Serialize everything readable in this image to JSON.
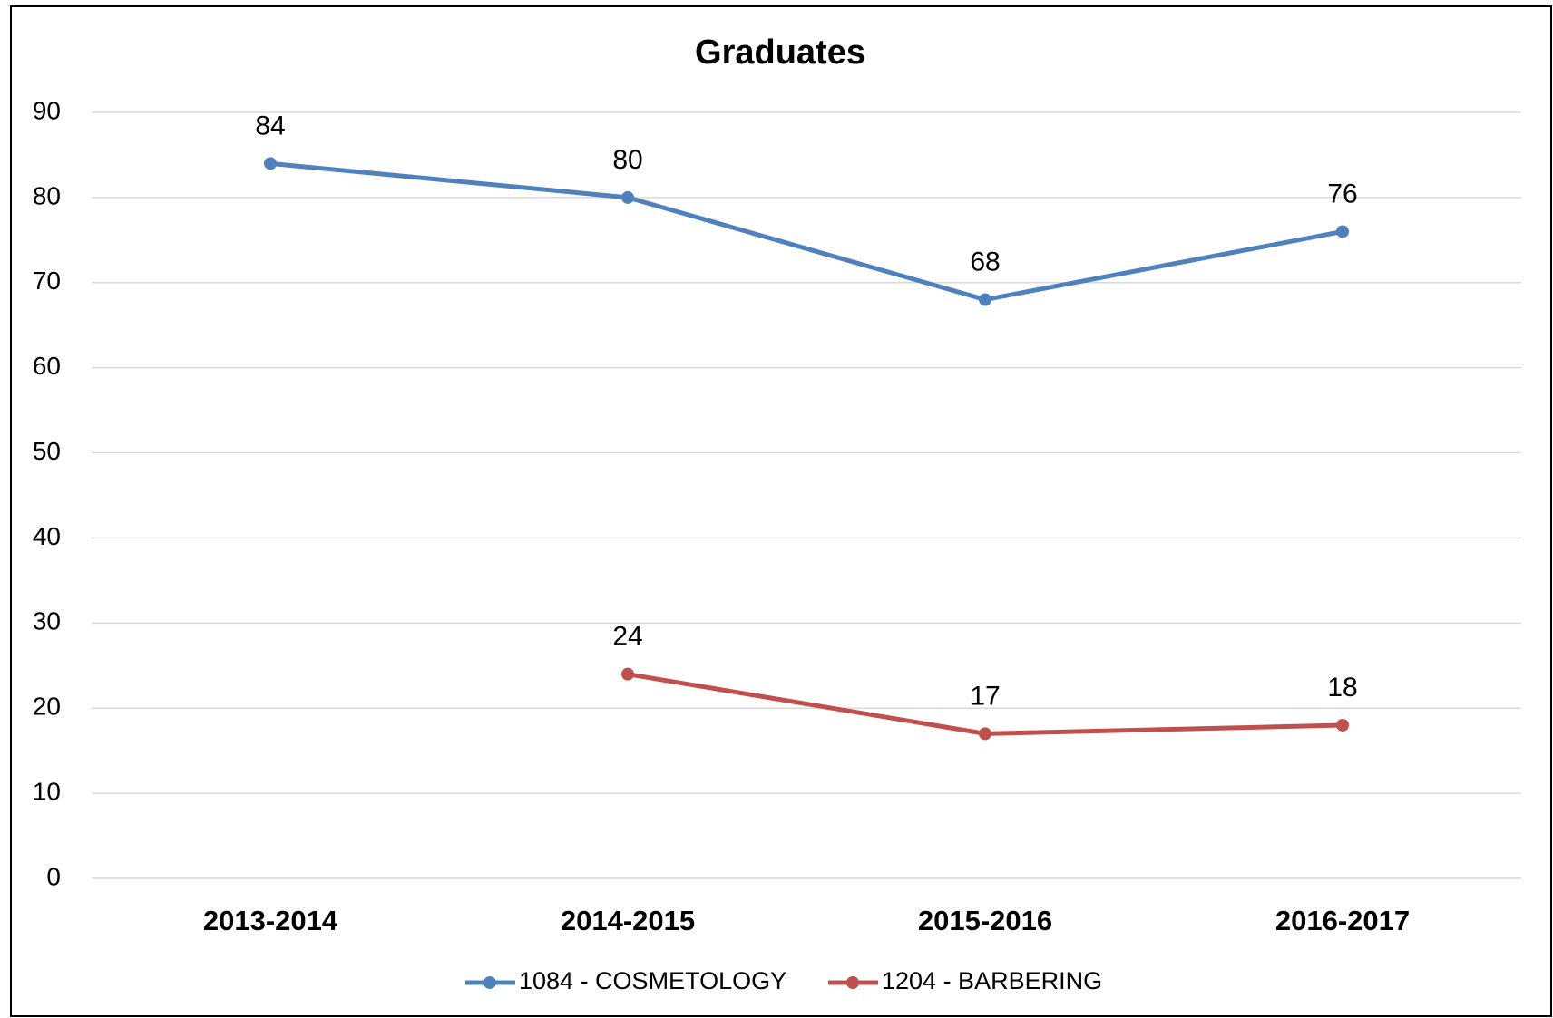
{
  "chart_data": {
    "type": "line",
    "title": "Graduates",
    "categories": [
      "2013-2014",
      "2014-2015",
      "2015-2016",
      "2016-2017"
    ],
    "series": [
      {
        "name": "1084 - COSMETOLOGY",
        "color": "#4f81bd",
        "values": [
          84,
          80,
          68,
          76
        ]
      },
      {
        "name": "1204 - BARBERING",
        "color": "#c0504d",
        "values": [
          null,
          24,
          17,
          18
        ]
      }
    ],
    "ylim": [
      0,
      90
    ],
    "yticks": [
      0,
      10,
      20,
      30,
      40,
      50,
      60,
      70,
      80,
      90
    ],
    "grid": true,
    "legend": "bottom"
  }
}
